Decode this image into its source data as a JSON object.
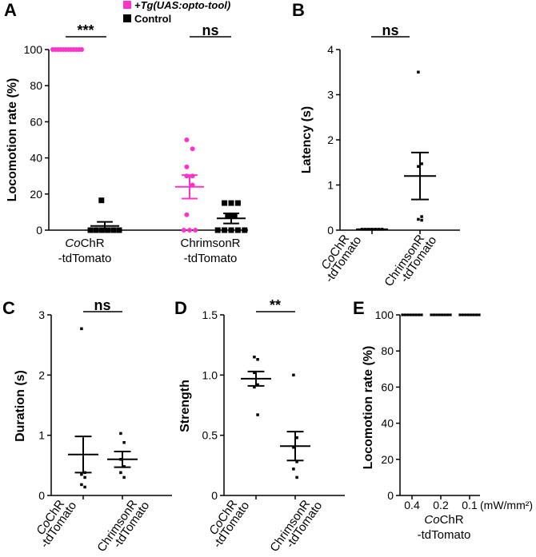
{
  "colors": {
    "opto": "#ff33cc",
    "control": "#000000"
  },
  "legend": [
    {
      "label": "+Tg(UAS:opto-tool)",
      "color": "#ff33cc",
      "marker": "square"
    },
    {
      "label": "Control",
      "color": "#000000",
      "marker": "square"
    }
  ],
  "chart_data": [
    {
      "panel": "A",
      "type": "scatter",
      "ylabel": "Locomotion rate (%)",
      "ylim": [
        0,
        100
      ],
      "yticks": [
        "0",
        "20",
        "40",
        "60",
        "80",
        "100"
      ],
      "groups": [
        {
          "label_italic": "Co",
          "label_rest": "ChR",
          "label_line2": "-tdTomato"
        },
        {
          "label_italic": "",
          "label_rest": "ChrimsonR",
          "label_line2": "-tdTomato"
        }
      ],
      "series": [
        {
          "name": "+Tg(UAS:opto-tool)",
          "group": 0,
          "values": [
            100,
            100,
            100,
            100,
            100,
            100,
            100,
            100,
            100,
            100,
            100,
            100
          ],
          "mean": 100,
          "sem": 0
        },
        {
          "name": "Control",
          "group": 0,
          "values": [
            0,
            0,
            0,
            0,
            0,
            0,
            16.5
          ],
          "mean": 2.3,
          "sem": 2.3
        },
        {
          "name": "+Tg(UAS:opto-tool)",
          "group": 1,
          "values": [
            50,
            45,
            35,
            30,
            30,
            25,
            8.5,
            0,
            0,
            0
          ],
          "mean": 24,
          "sem": 6.5
        },
        {
          "name": "Control",
          "group": 1,
          "values": [
            15,
            15,
            15,
            8,
            8,
            0,
            0,
            0,
            0,
            0
          ],
          "mean": 6.5,
          "sem": 2.8
        }
      ],
      "significance": [
        {
          "group": 0,
          "label": "***"
        },
        {
          "group": 1,
          "label": "ns"
        }
      ]
    },
    {
      "panel": "B",
      "type": "scatter",
      "ylabel": "Latency (s)",
      "ylim": [
        0,
        4
      ],
      "yticks": [
        "0",
        "1",
        "2",
        "3",
        "4"
      ],
      "categories": [
        {
          "label_italic": "Co",
          "label_rest": "ChR",
          "label_line2": "-tdTomato"
        },
        {
          "label_italic": "",
          "label_rest": "ChrimsonR",
          "label_line2": "-tdTomato"
        }
      ],
      "series": [
        {
          "category": 0,
          "values": [
            0.02,
            0.02,
            0.02,
            0.02,
            0.02,
            0.02,
            0.02
          ],
          "mean": 0.02,
          "sem": 0.005
        },
        {
          "category": 1,
          "values": [
            3.5,
            1.47,
            1.41,
            0.3,
            0.24,
            0.22
          ],
          "mean": 1.2,
          "sem": 0.52
        }
      ],
      "significance": "ns"
    },
    {
      "panel": "C",
      "type": "scatter",
      "ylabel": "Duration (s)",
      "ylim": [
        0,
        3
      ],
      "yticks": [
        "0",
        "1",
        "2",
        "3"
      ],
      "categories": [
        {
          "label_italic": "Co",
          "label_rest": "ChR",
          "label_line2": "-tdTomato"
        },
        {
          "label_italic": "",
          "label_rest": "ChrimsonR",
          "label_line2": "-tdTomato"
        }
      ],
      "series": [
        {
          "category": 0,
          "values": [
            2.77,
            0.38,
            0.35,
            0.3,
            0.18,
            0.14
          ],
          "mean": 0.68,
          "sem": 0.3
        },
        {
          "category": 1,
          "values": [
            1.03,
            0.88,
            0.6,
            0.48,
            0.38,
            0.3
          ],
          "mean": 0.6,
          "sem": 0.13
        }
      ],
      "significance": "ns"
    },
    {
      "panel": "D",
      "type": "scatter",
      "ylabel": "Strength",
      "ylim": [
        0,
        1.5
      ],
      "yticks": [
        "0",
        "0.5",
        "1.0",
        "1.5"
      ],
      "categories": [
        {
          "label_italic": "Co",
          "label_rest": "ChR",
          "label_line2": "-tdTomato"
        },
        {
          "label_italic": "",
          "label_rest": "ChrimsonR",
          "label_line2": "-tdTomato"
        }
      ],
      "series": [
        {
          "category": 0,
          "values": [
            1.15,
            1.13,
            1.02,
            0.92,
            0.9,
            0.67
          ],
          "mean": 0.97,
          "sem": 0.06
        },
        {
          "category": 1,
          "values": [
            1.0,
            0.48,
            0.4,
            0.28,
            0.22,
            0.15
          ],
          "mean": 0.41,
          "sem": 0.12
        }
      ],
      "significance": "**"
    },
    {
      "panel": "E",
      "type": "scatter",
      "ylabel": "Locomotion rate (%)",
      "ylim": [
        0,
        100
      ],
      "yticks": [
        "0",
        "20",
        "40",
        "60",
        "80",
        "100"
      ],
      "categories": [
        "0.4",
        "0.2",
        "0.1"
      ],
      "unit": "(mW/mm²)",
      "group_label": {
        "label_italic": "Co",
        "label_rest": "ChR",
        "label_line2": "-tdTomato"
      },
      "series": [
        {
          "category": 0,
          "values": [
            100,
            100,
            100,
            100,
            100,
            100,
            100,
            100
          ],
          "mean": 100,
          "sem": 0
        },
        {
          "category": 1,
          "values": [
            100,
            100,
            100,
            100,
            100,
            100,
            100,
            100
          ],
          "mean": 100,
          "sem": 0
        },
        {
          "category": 2,
          "values": [
            100,
            100,
            100,
            100,
            100,
            100,
            100,
            100
          ],
          "mean": 100,
          "sem": 0
        }
      ]
    }
  ]
}
